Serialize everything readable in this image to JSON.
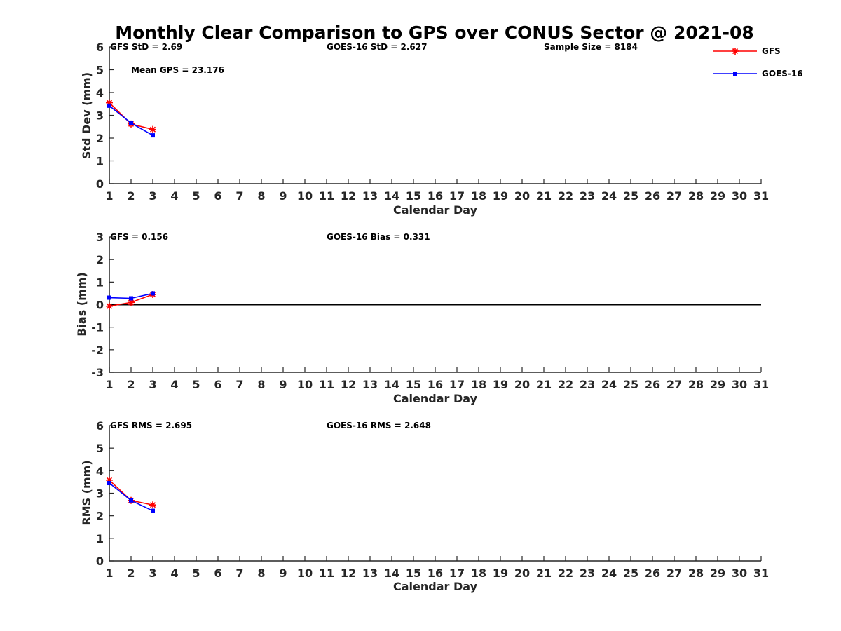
{
  "figure": {
    "title": "Monthly Clear Comparison to GPS over CONUS Sector @ 2021-08"
  },
  "legend": {
    "placement": "top-right",
    "items": [
      {
        "name": "GFS",
        "color": "#ff0000",
        "marker": "asterisk"
      },
      {
        "name": "GOES-16",
        "color": "#0000ff",
        "marker": "square"
      }
    ]
  },
  "chart_data": [
    {
      "type": "line",
      "xlabel": "Calendar Day",
      "ylabel": "Std Dev (mm)",
      "xlim": [
        1,
        31
      ],
      "ylim": [
        0,
        6
      ],
      "yticks": [
        0,
        1,
        2,
        3,
        4,
        5,
        6
      ],
      "grid": false,
      "zero_line": false,
      "annotations": {
        "gfs": "GFS StD = 2.69",
        "goes": "GOES-16 StD = 2.627",
        "sample": "Sample Size = 8184",
        "mean": "Mean GPS = 23.176"
      },
      "series": [
        {
          "name": "GFS",
          "x": [
            1,
            2,
            3
          ],
          "values": [
            3.55,
            2.62,
            2.38
          ]
        },
        {
          "name": "GOES-16",
          "x": [
            1,
            2,
            3
          ],
          "values": [
            3.42,
            2.66,
            2.12
          ]
        }
      ]
    },
    {
      "type": "line",
      "xlabel": "Calendar Day",
      "ylabel": "Bias (mm)",
      "xlim": [
        1,
        31
      ],
      "ylim": [
        -3,
        3
      ],
      "yticks": [
        -3,
        -2,
        -1,
        0,
        1,
        2,
        3
      ],
      "grid": false,
      "zero_line": true,
      "annotations": {
        "gfs": "GFS = 0.156",
        "goes": "GOES-16 Bias = 0.331"
      },
      "series": [
        {
          "name": "GFS",
          "x": [
            1,
            2,
            3
          ],
          "values": [
            -0.07,
            0.1,
            0.45
          ]
        },
        {
          "name": "GOES-16",
          "x": [
            1,
            2,
            3
          ],
          "values": [
            0.31,
            0.28,
            0.5
          ]
        }
      ]
    },
    {
      "type": "line",
      "xlabel": "Calendar Day",
      "ylabel": "RMS (mm)",
      "xlim": [
        1,
        31
      ],
      "ylim": [
        0,
        6
      ],
      "yticks": [
        0,
        1,
        2,
        3,
        4,
        5,
        6
      ],
      "grid": false,
      "zero_line": false,
      "annotations": {
        "gfs": "GFS RMS = 2.695",
        "goes": "GOES-16 RMS = 2.648"
      },
      "series": [
        {
          "name": "GFS",
          "x": [
            1,
            2,
            3
          ],
          "values": [
            3.58,
            2.68,
            2.48
          ]
        },
        {
          "name": "GOES-16",
          "x": [
            1,
            2,
            3
          ],
          "values": [
            3.45,
            2.68,
            2.22
          ]
        }
      ]
    }
  ]
}
